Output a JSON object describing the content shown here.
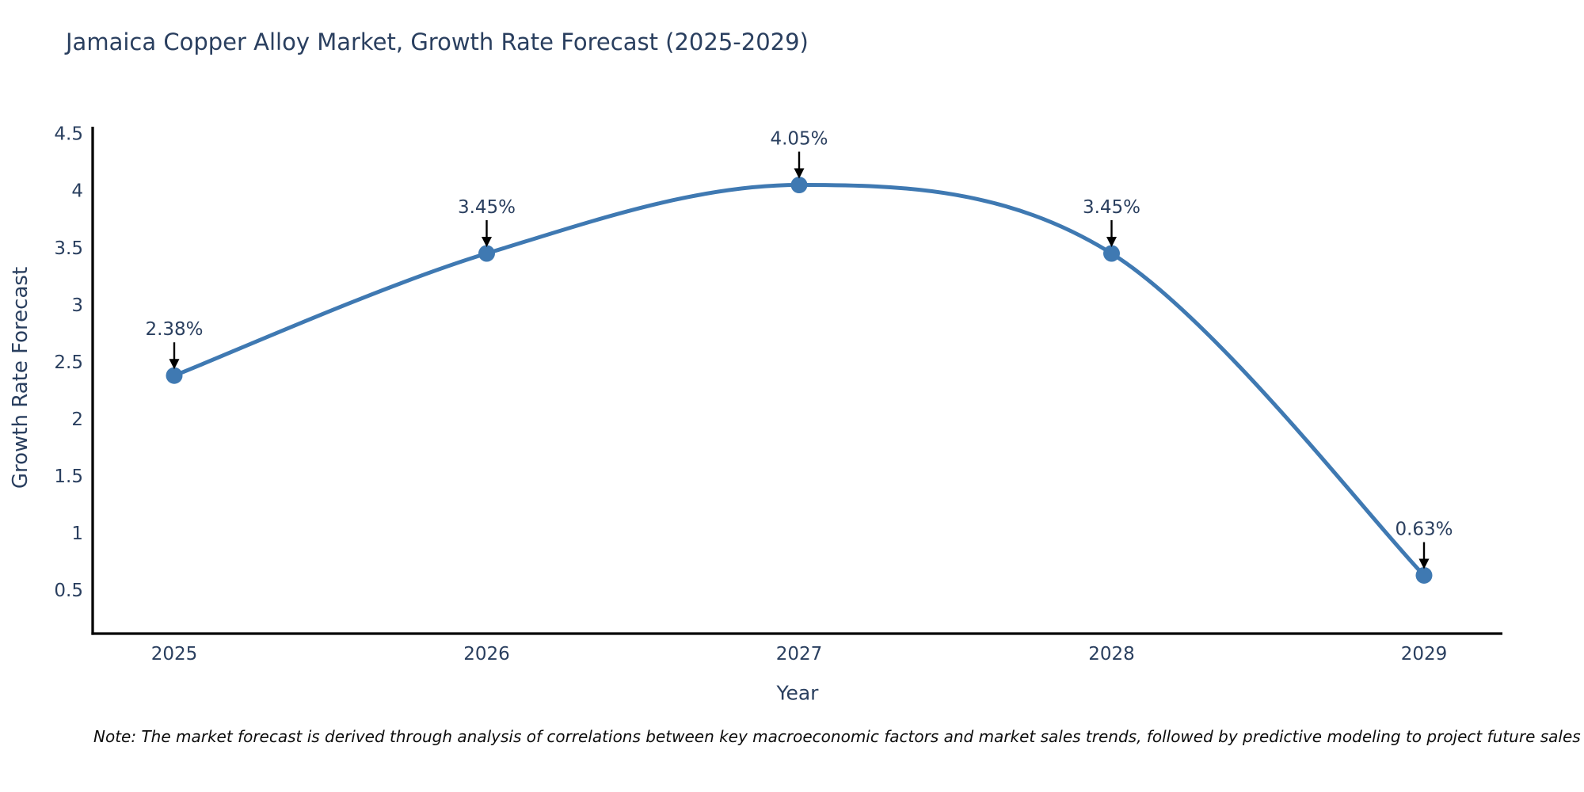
{
  "page": {
    "note": "Note: The market forecast is derived through analysis of correlations between key macroeconomic factors and market sales trends, followed by predictive modeling to project future sales"
  },
  "chart_data": {
    "type": "line",
    "title": "Jamaica Copper Alloy Market, Growth Rate Forecast (2025-2029)",
    "categories": [
      "2025",
      "2026",
      "2027",
      "2028",
      "2029"
    ],
    "series": [
      {
        "name": "Growth Rate Forecast",
        "values": [
          2.38,
          3.45,
          4.05,
          3.45,
          0.63
        ],
        "labels": [
          "2.38%",
          "3.45%",
          "4.05%",
          "3.45%",
          "0.63%"
        ]
      }
    ],
    "xlabel": "Year",
    "ylabel": "Growth Rate Forecast",
    "ylim": [
      0.12,
      4.56
    ],
    "yticks": [
      0.5,
      1,
      1.5,
      2,
      2.5,
      3,
      3.5,
      4,
      4.5
    ],
    "line_shape": "spline",
    "grid": false,
    "legend_position": "none",
    "colors": {
      "line": "#3f79b2",
      "marker": "#3f79b2",
      "axis": "#000000",
      "tick_text": "#2a3f5f",
      "annotation_text": "#2a3f5f",
      "annotation_arrow": "#000000",
      "background": "#ffffff"
    }
  }
}
